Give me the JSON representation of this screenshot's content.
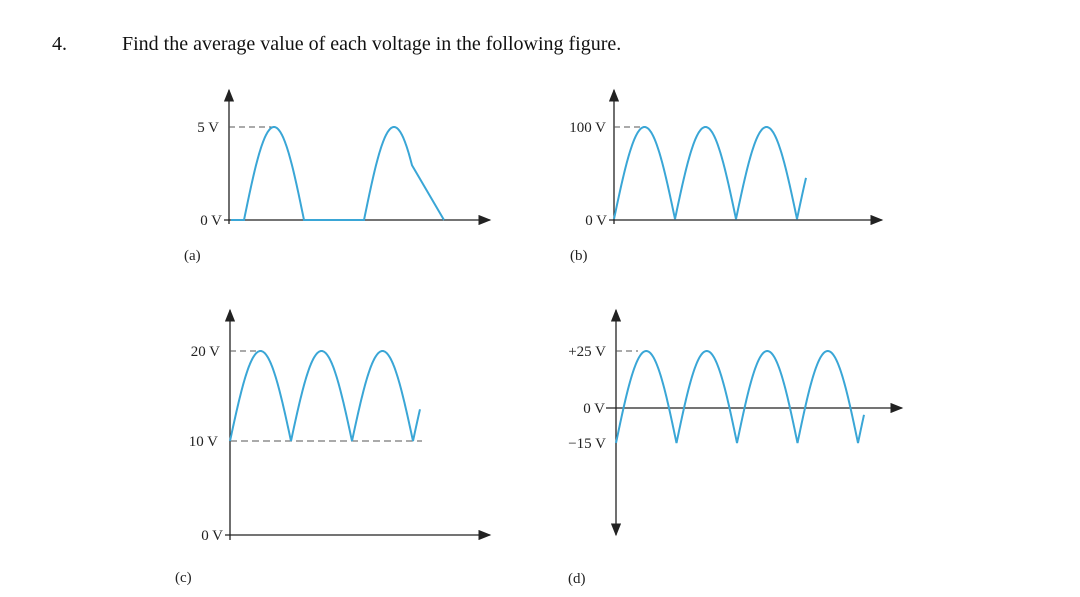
{
  "question": {
    "number": "4.",
    "text": "Find the average value of each voltage in the following figure."
  },
  "figures": [
    {
      "caption": "(a)",
      "labels": [
        "5 V",
        "0 V"
      ],
      "waveform": "half-wave rectified sine",
      "peak_v": 5,
      "min_v": 0
    },
    {
      "caption": "(b)",
      "labels": [
        "100 V",
        "0 V"
      ],
      "waveform": "full-wave rectified sine",
      "peak_v": 100,
      "min_v": 0
    },
    {
      "caption": "(c)",
      "labels": [
        "20 V",
        "10 V",
        "0 V"
      ],
      "waveform": "full-wave rectified sine with offset",
      "peak_v": 20,
      "min_v": 10
    },
    {
      "caption": "(d)",
      "labels": [
        "+25 V",
        "0 V",
        "−15 V"
      ],
      "waveform": "full-wave rectified sine with offset",
      "peak_v": 25,
      "min_v": -15
    }
  ],
  "colors": {
    "waveform": "#3aa6d6",
    "axis": "#222222",
    "text": "#111111"
  }
}
